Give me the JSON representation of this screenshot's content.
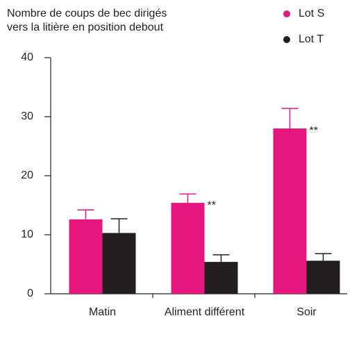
{
  "chart_data": {
    "type": "bar",
    "title": "Nombre de coups de bec dirigés vers la litière en position debout",
    "categories": [
      "Matin",
      "Aliment différent",
      "Soir"
    ],
    "series": [
      {
        "name": "Lot S",
        "color": "#e5177e",
        "values": [
          12.6,
          15.4,
          28.0
        ],
        "errors": [
          1.6,
          1.5,
          3.4
        ]
      },
      {
        "name": "Lot T",
        "color": "#231f20",
        "values": [
          10.3,
          5.4,
          5.6
        ],
        "errors": [
          2.4,
          1.2,
          1.2
        ]
      }
    ],
    "annotations": [
      "**",
      "**"
    ],
    "ylim": [
      0,
      40
    ],
    "yticks": [
      0,
      10,
      20,
      30,
      40
    ],
    "grid": false
  }
}
